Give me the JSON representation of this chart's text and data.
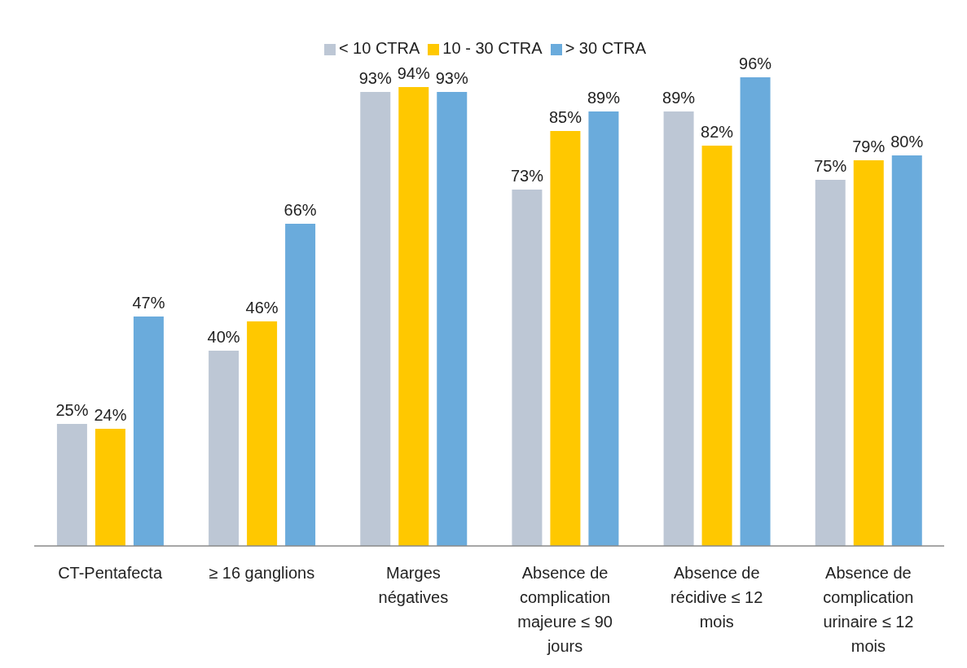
{
  "chart_data": {
    "type": "bar",
    "categories": [
      "CT-Pentafecta",
      "≥ 16 ganglions",
      "Marges négatives",
      "Absence de complication majeure ≤ 90 jours",
      "Absence de récidive ≤ 12 mois",
      "Absence de complication urinaire ≤ 12 mois"
    ],
    "series": [
      {
        "name": "< 10 CTRA",
        "color": "#bdc7d5",
        "values": [
          25,
          40,
          93,
          73,
          89,
          75
        ],
        "value_labels": [
          "25%",
          "40%",
          "93%",
          "73%",
          "89%",
          "75%"
        ]
      },
      {
        "name": "10 - 30 CTRA",
        "color": "#ffc800",
        "values": [
          24,
          46,
          94,
          85,
          82,
          79
        ],
        "value_labels": [
          "24%",
          "46%",
          "94%",
          "85%",
          "82%",
          "79%"
        ]
      },
      {
        "name": "> 30 CTRA",
        "color": "#6aabdc",
        "values": [
          47,
          66,
          93,
          89,
          96,
          80
        ],
        "value_labels": [
          "47%",
          "66%",
          "93%",
          "89%",
          "96%",
          "80%"
        ]
      }
    ],
    "legend": "top",
    "grid": false
  }
}
